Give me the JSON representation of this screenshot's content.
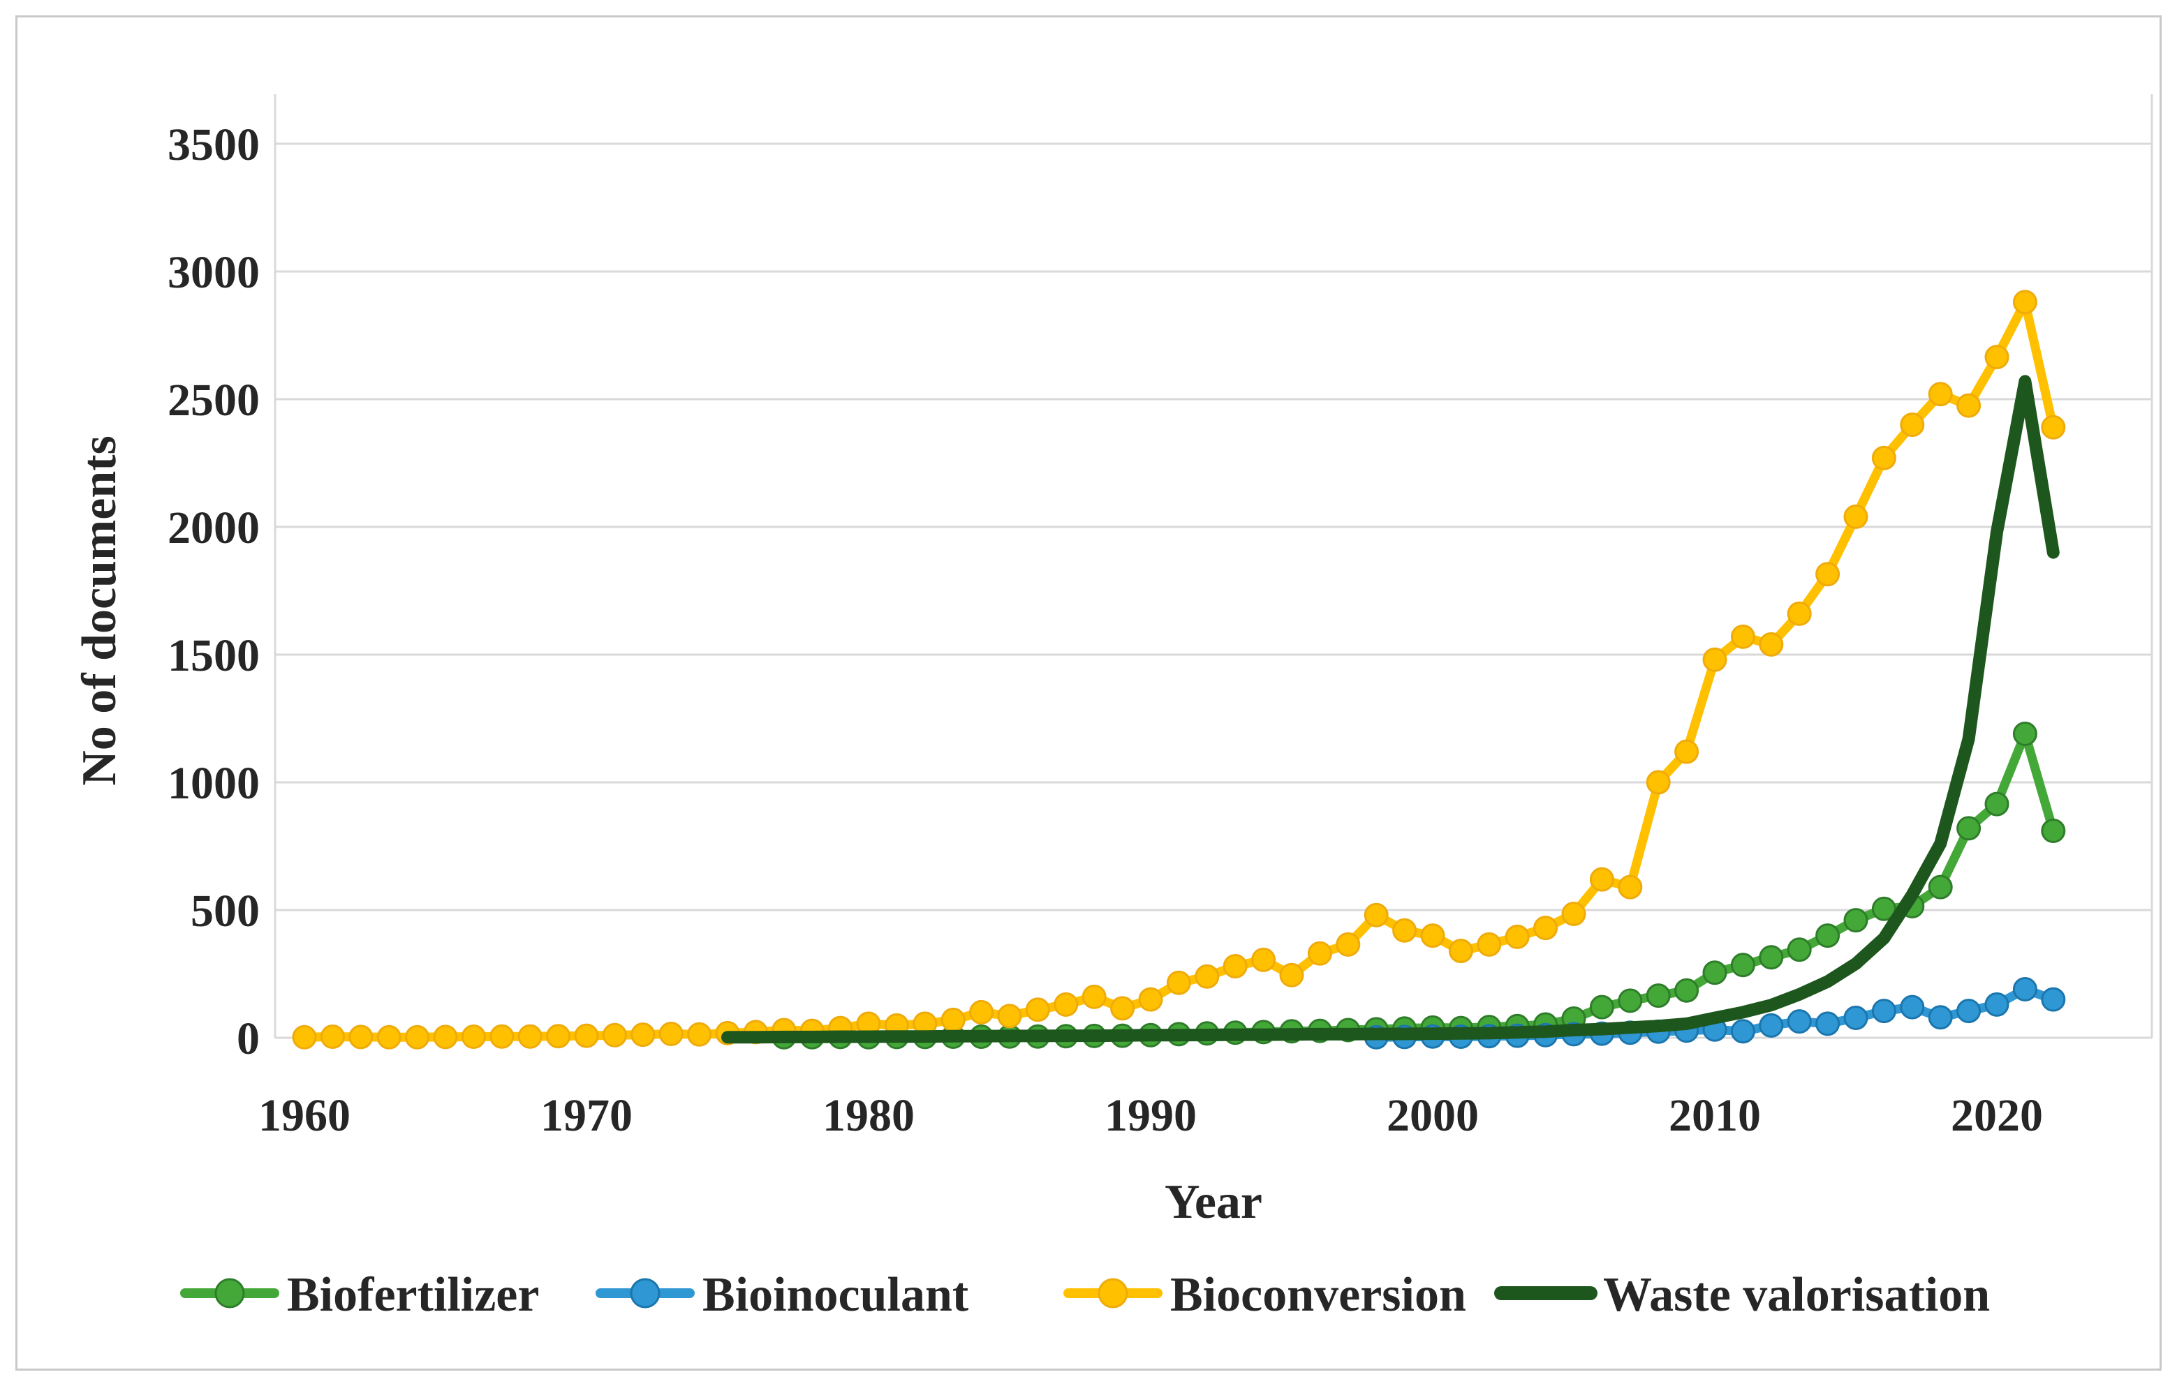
{
  "chart_data": {
    "type": "line",
    "title": "",
    "xlabel": "Year",
    "ylabel": "No of documents",
    "x_ticks": [
      "1960",
      "1970",
      "1980",
      "1990",
      "2000",
      "2010",
      "2020"
    ],
    "y_ticks": [
      "0",
      "500",
      "1000",
      "1500",
      "2000",
      "2500",
      "3000",
      "3500"
    ],
    "ylim": [
      0,
      3500
    ],
    "x_range": [
      1960,
      2022
    ],
    "grid": "horizontal",
    "legend_position": "bottom",
    "years": [
      1960,
      1961,
      1962,
      1963,
      1964,
      1965,
      1966,
      1967,
      1968,
      1969,
      1970,
      1971,
      1972,
      1973,
      1974,
      1975,
      1976,
      1977,
      1978,
      1979,
      1980,
      1981,
      1982,
      1983,
      1984,
      1985,
      1986,
      1987,
      1988,
      1989,
      1990,
      1991,
      1992,
      1993,
      1994,
      1995,
      1996,
      1997,
      1998,
      1999,
      2000,
      2001,
      2002,
      2003,
      2004,
      2005,
      2006,
      2007,
      2008,
      2009,
      2010,
      2011,
      2012,
      2013,
      2014,
      2015,
      2016,
      2017,
      2018,
      2019,
      2020,
      2021,
      2022
    ],
    "series": [
      {
        "name": "Biofertilizer",
        "color": "#44a838",
        "marker_stroke": "#2e7d2a",
        "marker": true,
        "line_width": 13,
        "values": [
          null,
          null,
          null,
          null,
          null,
          null,
          null,
          null,
          null,
          null,
          null,
          null,
          null,
          null,
          null,
          null,
          null,
          2,
          2,
          3,
          2,
          3,
          3,
          4,
          4,
          5,
          5,
          6,
          7,
          8,
          10,
          14,
          17,
          20,
          22,
          25,
          27,
          30,
          33,
          36,
          40,
          38,
          42,
          46,
          52,
          75,
          120,
          145,
          165,
          185,
          255,
          285,
          315,
          345,
          400,
          460,
          505,
          515,
          590,
          820,
          915,
          1190,
          810
        ]
      },
      {
        "name": "Bioinoculant",
        "color": "#2f97d3",
        "marker_stroke": "#1b76ad",
        "marker": true,
        "line_width": 13,
        "values": [
          null,
          null,
          null,
          null,
          null,
          null,
          null,
          null,
          null,
          null,
          null,
          null,
          null,
          null,
          null,
          null,
          null,
          null,
          null,
          null,
          null,
          null,
          null,
          null,
          null,
          null,
          null,
          null,
          null,
          null,
          null,
          null,
          null,
          null,
          null,
          null,
          null,
          null,
          2,
          3,
          5,
          4,
          6,
          8,
          10,
          14,
          16,
          20,
          24,
          28,
          32,
          25,
          48,
          64,
          55,
          78,
          105,
          120,
          80,
          105,
          130,
          190,
          150
        ]
      },
      {
        "name": "Bioconversion",
        "color": "#ffc000",
        "marker_stroke": "#efab0a",
        "marker": true,
        "line_width": 13,
        "values": [
          2,
          4,
          3,
          2,
          2,
          3,
          4,
          5,
          5,
          6,
          8,
          10,
          12,
          15,
          13,
          18,
          22,
          30,
          27,
          38,
          55,
          48,
          55,
          70,
          100,
          85,
          110,
          130,
          160,
          115,
          150,
          215,
          240,
          280,
          305,
          245,
          330,
          365,
          480,
          420,
          400,
          340,
          365,
          395,
          430,
          485,
          620,
          590,
          1000,
          1120,
          1480,
          1570,
          1540,
          1660,
          1815,
          2040,
          2270,
          2400,
          2520,
          2475,
          2665,
          2880,
          2390
        ]
      },
      {
        "name": "Waste valorisation",
        "color": "#1d571d",
        "marker_stroke": "#1d571d",
        "marker": false,
        "line_width": 18,
        "values": [
          null,
          null,
          null,
          null,
          null,
          null,
          null,
          null,
          null,
          null,
          null,
          null,
          null,
          null,
          null,
          2,
          2,
          3,
          3,
          4,
          4,
          5,
          5,
          6,
          6,
          7,
          7,
          8,
          8,
          9,
          10,
          10,
          11,
          12,
          12,
          13,
          14,
          14,
          15,
          15,
          16,
          17,
          18,
          21,
          24,
          30,
          34,
          40,
          46,
          55,
          78,
          100,
          128,
          170,
          220,
          290,
          390,
          560,
          760,
          1170,
          1980,
          2570,
          1900
        ]
      }
    ]
  }
}
